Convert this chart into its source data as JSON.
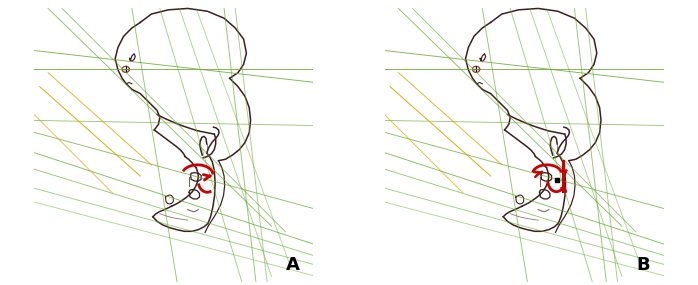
{
  "background_color": "#ffffff",
  "border_color": "#bbbbbb",
  "panel_A_label": "A",
  "panel_B_label": "B",
  "label_fontsize": 13,
  "label_fontweight": "bold",
  "outline_color": "#3d2020",
  "green_line_color": "#6aaa30",
  "red_arrow_color": "#cc0000",
  "yellow_line_color": "#c8b000",
  "figure_width": 6.98,
  "figure_height": 2.85,
  "dpi": 100,
  "lw_main": 1.1,
  "lw_green": 0.65,
  "lw_yellow": 0.75
}
